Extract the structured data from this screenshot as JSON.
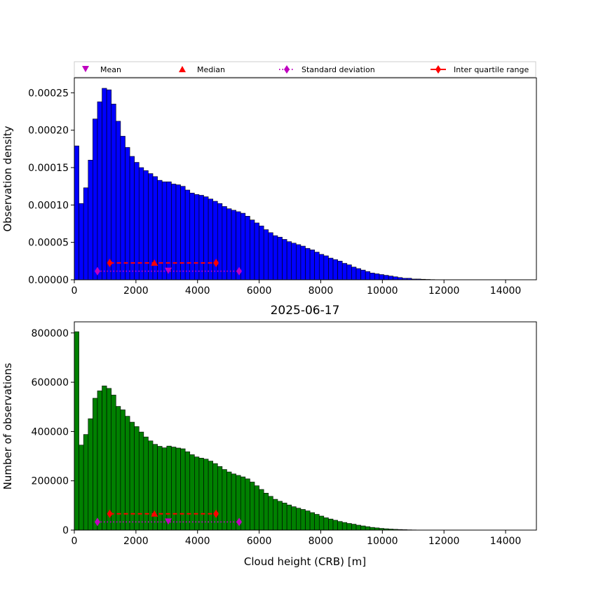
{
  "chart_data": [
    {
      "type": "bar",
      "ylabel": "Observation density",
      "xlim": [
        0,
        15000
      ],
      "ylim": [
        0,
        0.00027
      ],
      "bin_width": 150,
      "bar_color": "#0000ff",
      "x_ticks": [
        "0",
        "2000",
        "4000",
        "6000",
        "8000",
        "10000",
        "12000",
        "14000"
      ],
      "y_ticks": [
        "0.00000",
        "0.00005",
        "0.00010",
        "0.00015",
        "0.00020",
        "0.00025"
      ],
      "values": [
        0.000179,
        0.000102,
        0.000123,
        0.00016,
        0.000215,
        0.000238,
        0.000256,
        0.000254,
        0.000235,
        0.000212,
        0.000192,
        0.000177,
        0.000165,
        0.000157,
        0.00015,
        0.000146,
        0.000142,
        0.000138,
        0.000133,
        0.000131,
        0.000131,
        0.000128,
        0.000127,
        0.000125,
        0.00012,
        0.000116,
        0.000114,
        0.000113,
        0.000111,
        0.000108,
        0.000105,
        0.000102,
        9.8e-05,
        9.5e-05,
        9.3e-05,
        9.1e-05,
        8.9e-05,
        8.5e-05,
        8e-05,
        7.6e-05,
        7.2e-05,
        6.7e-05,
        6.3e-05,
        5.9e-05,
        5.7e-05,
        5.4e-05,
        5.1e-05,
        4.9e-05,
        4.7e-05,
        4.5e-05,
        4.2e-05,
        4e-05,
        3.7e-05,
        3.4e-05,
        3.2e-05,
        2.9e-05,
        2.7e-05,
        2.5e-05,
        2.2e-05,
        2e-05,
        1.7e-05,
        1.5e-05,
        1.3e-05,
        1.1e-05,
        9e-06,
        8e-06,
        7e-06,
        6e-06,
        5e-06,
        4e-06,
        3e-06,
        2e-06,
        2e-06,
        1e-06,
        1e-06,
        7e-07,
        5e-07,
        3e-07,
        2e-07,
        1e-07
      ],
      "stats": {
        "mean": 3050,
        "median": 2600,
        "std_range": [
          750,
          5350
        ],
        "iqr_range": [
          1150,
          4600
        ],
        "std_y": 1.15e-05,
        "iqr_y": 2.25e-05
      }
    },
    {
      "type": "bar",
      "title": "2025-06-17",
      "xlabel": "Cloud height (CRB) [m]",
      "ylabel": "Number of observations",
      "xlim": [
        0,
        15000
      ],
      "ylim": [
        0,
        845000
      ],
      "bin_width": 150,
      "bar_color": "#008000",
      "x_ticks": [
        "0",
        "2000",
        "4000",
        "6000",
        "8000",
        "10000",
        "12000",
        "14000"
      ],
      "y_ticks": [
        "0",
        "200000",
        "400000",
        "600000",
        "800000"
      ],
      "values": [
        805000,
        345000,
        388000,
        452000,
        535000,
        565000,
        585000,
        575000,
        548000,
        502000,
        488000,
        462000,
        438000,
        420000,
        398000,
        378000,
        362000,
        348000,
        340000,
        334000,
        341000,
        337000,
        333000,
        330000,
        318000,
        306000,
        297000,
        292000,
        288000,
        280000,
        270000,
        258000,
        246000,
        236000,
        228000,
        222000,
        216000,
        208000,
        195000,
        180000,
        165000,
        150000,
        137000,
        125000,
        117000,
        110000,
        102000,
        95000,
        89000,
        84000,
        78000,
        71000,
        64000,
        57000,
        50000,
        45000,
        40000,
        35000,
        31000,
        27000,
        24000,
        20000,
        17000,
        14000,
        11000,
        9000,
        7000,
        5500,
        4200,
        3200,
        2500,
        1800,
        1200,
        800,
        500,
        300,
        200,
        100
      ],
      "stats": {
        "mean": 3050,
        "median": 2600,
        "std_range": [
          750,
          5350
        ],
        "iqr_range": [
          1150,
          4600
        ],
        "std_y": 33000,
        "iqr_y": 66000
      }
    }
  ],
  "legend": {
    "placement": "top",
    "entries": [
      {
        "label": "Mean",
        "marker": "triangle-down",
        "color": "#bf00bf"
      },
      {
        "label": "Median",
        "marker": "triangle-up",
        "color": "#ff0000"
      },
      {
        "label": "Standard deviation",
        "marker": "diamond-dotted",
        "color": "#bf00bf"
      },
      {
        "label": "Inter quartile range",
        "marker": "diamond-solid",
        "color": "#ff0000"
      }
    ]
  },
  "colors": {
    "mean": "#bf00bf",
    "median": "#ff0000",
    "std": "#bf00bf",
    "iqr": "#ff0000"
  }
}
